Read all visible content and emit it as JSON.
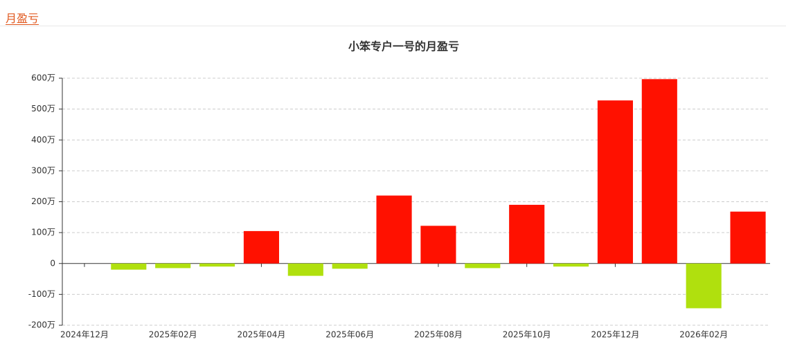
{
  "header": {
    "title": "月盈亏"
  },
  "chart_data": {
    "type": "bar",
    "title": "小笨专户一号的月盈亏",
    "categories": [
      "2024年12月",
      null,
      "2025年02月",
      null,
      "2025年04月",
      null,
      "2025年06月",
      null,
      "2025年08月",
      null,
      "2025年10月",
      null,
      "2025年12月",
      null,
      "2026年02月",
      null
    ],
    "values": [
      0,
      -20,
      -15,
      -10,
      105,
      -40,
      -17,
      220,
      122,
      -15,
      190,
      -10,
      528,
      597,
      -145,
      168
    ],
    "positive_color": "#ff1100",
    "negative_color": "#b0e00e",
    "ylim": [
      -200,
      600
    ],
    "yticks": [
      {
        "value": -200,
        "label": "-200万"
      },
      {
        "value": -100,
        "label": "-100万"
      },
      0,
      {
        "value": 100,
        "label": "100万"
      },
      {
        "value": 200,
        "label": "200万"
      },
      {
        "value": 300,
        "label": "300万"
      },
      {
        "value": 400,
        "label": "400万"
      },
      {
        "value": 500,
        "label": "500万"
      },
      {
        "value": 600,
        "label": "600万"
      }
    ],
    "grid": true
  }
}
